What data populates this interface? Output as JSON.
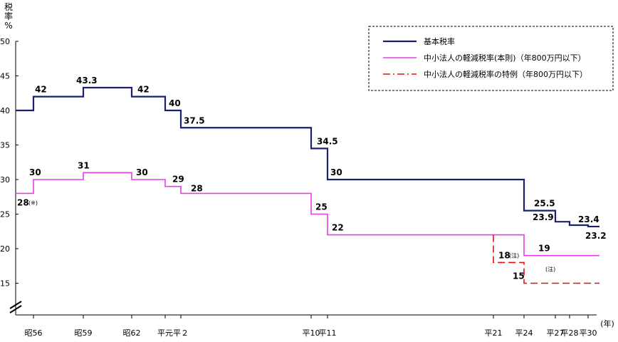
{
  "chart_data": {
    "type": "line",
    "ylabel_chars": [
      "税",
      "率",
      "%"
    ],
    "xlabel": "(年)",
    "ylim": [
      15,
      50
    ],
    "yticks": [
      "50",
      "45",
      "40",
      "35",
      "30",
      "25",
      "20",
      "15"
    ],
    "xtick_labels": [
      {
        "label": "昭56",
        "year": 1981
      },
      {
        "label": "昭59",
        "year": 1984
      },
      {
        "label": "昭62",
        "year": 1987
      },
      {
        "label": "平元",
        "year": 1989
      },
      {
        "label": "平２",
        "year": 1990
      },
      {
        "label": "平10",
        "year": 1998
      },
      {
        "label": "平11",
        "year": 1999
      },
      {
        "label": "平21",
        "year": 2009
      },
      {
        "label": "平24",
        "year": 2012
      },
      {
        "label": "平27",
        "year": 2015
      },
      {
        "label": "平28",
        "year": 2016
      },
      {
        "label": "平30",
        "year": 2018
      }
    ],
    "legend": {
      "placement": "top-right",
      "entries": [
        {
          "label": "基本税率",
          "color": "#1a1f6e",
          "style": "solid"
        },
        {
          "label": "中小法人の軽減税率(本則)（年800万円以下）",
          "color": "#e83ce8",
          "style": "solid"
        },
        {
          "label": "中小法人の軽減税率の特例（年800万円以下）",
          "color": "#e01010",
          "style": "dashdot"
        }
      ]
    },
    "series": [
      {
        "name": "基本税率",
        "color": "#1a1f6e",
        "steps": [
          {
            "from": 1980,
            "to": 1981,
            "value": 40
          },
          {
            "from": 1981,
            "to": 1984,
            "value": 42
          },
          {
            "from": 1984,
            "to": 1987,
            "value": 43.3
          },
          {
            "from": 1987,
            "to": 1989,
            "value": 42
          },
          {
            "from": 1989,
            "to": 1990,
            "value": 40
          },
          {
            "from": 1990,
            "to": 1998,
            "value": 37.5
          },
          {
            "from": 1998,
            "to": 1999,
            "value": 34.5
          },
          {
            "from": 1999,
            "to": 2012,
            "value": 30
          },
          {
            "from": 2012,
            "to": 2015,
            "value": 25.5
          },
          {
            "from": 2015,
            "to": 2016,
            "value": 23.9
          },
          {
            "from": 2016,
            "to": 2018,
            "value": 23.4
          },
          {
            "from": 2018,
            "to": 2018.7,
            "value": 23.2
          }
        ]
      },
      {
        "name": "中小法人の軽減税率(本則)（年800万円以下）",
        "color": "#e83ce8",
        "steps": [
          {
            "from": 1980,
            "to": 1981,
            "value": 28
          },
          {
            "from": 1981,
            "to": 1984,
            "value": 30
          },
          {
            "from": 1984,
            "to": 1987,
            "value": 31
          },
          {
            "from": 1987,
            "to": 1989,
            "value": 30
          },
          {
            "from": 1989,
            "to": 1990,
            "value": 29
          },
          {
            "from": 1990,
            "to": 1998,
            "value": 28
          },
          {
            "from": 1998,
            "to": 1999,
            "value": 25
          },
          {
            "from": 1999,
            "to": 2012,
            "value": 22
          },
          {
            "from": 2012,
            "to": 2018.7,
            "value": 19
          }
        ]
      },
      {
        "name": "中小法人の軽減税率の特例（年800万円以下）",
        "color": "#e01010",
        "steps": [
          {
            "from": 2009,
            "to": 2009,
            "value": 22
          },
          {
            "from": 2009,
            "to": 2012,
            "value": 18
          },
          {
            "from": 2012,
            "to": 2018.7,
            "value": 15
          }
        ]
      }
    ],
    "data_labels": [
      {
        "text": "42",
        "x": 1981,
        "y": 42,
        "dx": 2,
        "dy": -6
      },
      {
        "text": "43.3",
        "x": 1984,
        "y": 43.3,
        "dx": -10,
        "dy": -6
      },
      {
        "text": "42",
        "x": 1987,
        "y": 42,
        "dx": 8,
        "dy": -6
      },
      {
        "text": "40",
        "x": 1989,
        "y": 40,
        "dx": 5,
        "dy": -6
      },
      {
        "text": "37.5",
        "x": 1990,
        "y": 37.5,
        "dx": 4,
        "dy": -6
      },
      {
        "text": "34.5",
        "x": 1998,
        "y": 34.5,
        "dx": 8,
        "dy": -6
      },
      {
        "text": "30",
        "x": 1999,
        "y": 30,
        "dx": 4,
        "dy": -6
      },
      {
        "text": "25.5",
        "x": 2012,
        "y": 25.5,
        "dx": 14,
        "dy": -6
      },
      {
        "text": "23.9",
        "x": 2015,
        "y": 23.9,
        "dx": -32,
        "dy": -2
      },
      {
        "text": "23.4",
        "x": 2016,
        "y": 23.4,
        "dx": 12,
        "dy": -4
      },
      {
        "text": "23.2",
        "x": 2018,
        "y": 23.2,
        "dx": -4,
        "dy": 17
      },
      {
        "text": "30",
        "x": 1981,
        "y": 30,
        "dx": -6,
        "dy": -6
      },
      {
        "text": "31",
        "x": 1984,
        "y": 31,
        "dx": -8,
        "dy": -6
      },
      {
        "text": "30",
        "x": 1987,
        "y": 30,
        "dx": 6,
        "dy": -6
      },
      {
        "text": "29",
        "x": 1989,
        "y": 29,
        "dx": 10,
        "dy": -6
      },
      {
        "text": "28",
        "x": 1990,
        "y": 28,
        "dx": 14,
        "dy": -3
      },
      {
        "text": "25",
        "x": 1998,
        "y": 25,
        "dx": 6,
        "dy": -6
      },
      {
        "text": "22",
        "x": 1999,
        "y": 22,
        "dx": 6,
        "dy": -6
      },
      {
        "text": "19",
        "x": 2012,
        "y": 19,
        "dx": 20,
        "dy": -6
      },
      {
        "text": "18",
        "x": 2009,
        "y": 18,
        "dx": 7,
        "dy": -6
      },
      {
        "text": "15",
        "x": 2012,
        "y": 15,
        "dx": -16,
        "dy": -6
      },
      {
        "text": "28",
        "x": 1980,
        "y": 28,
        "dx": 2,
        "dy": 17
      }
    ],
    "annotations": [
      {
        "text": "(※)",
        "x": 1980,
        "y": 28,
        "dx": 18,
        "dy": 16
      },
      {
        "text": "(注)",
        "x": 2009,
        "y": 18,
        "dx": 22,
        "dy": -7
      },
      {
        "text": "(注)",
        "x": 2012,
        "y": 15,
        "dx": 30,
        "dy": -17
      }
    ]
  }
}
